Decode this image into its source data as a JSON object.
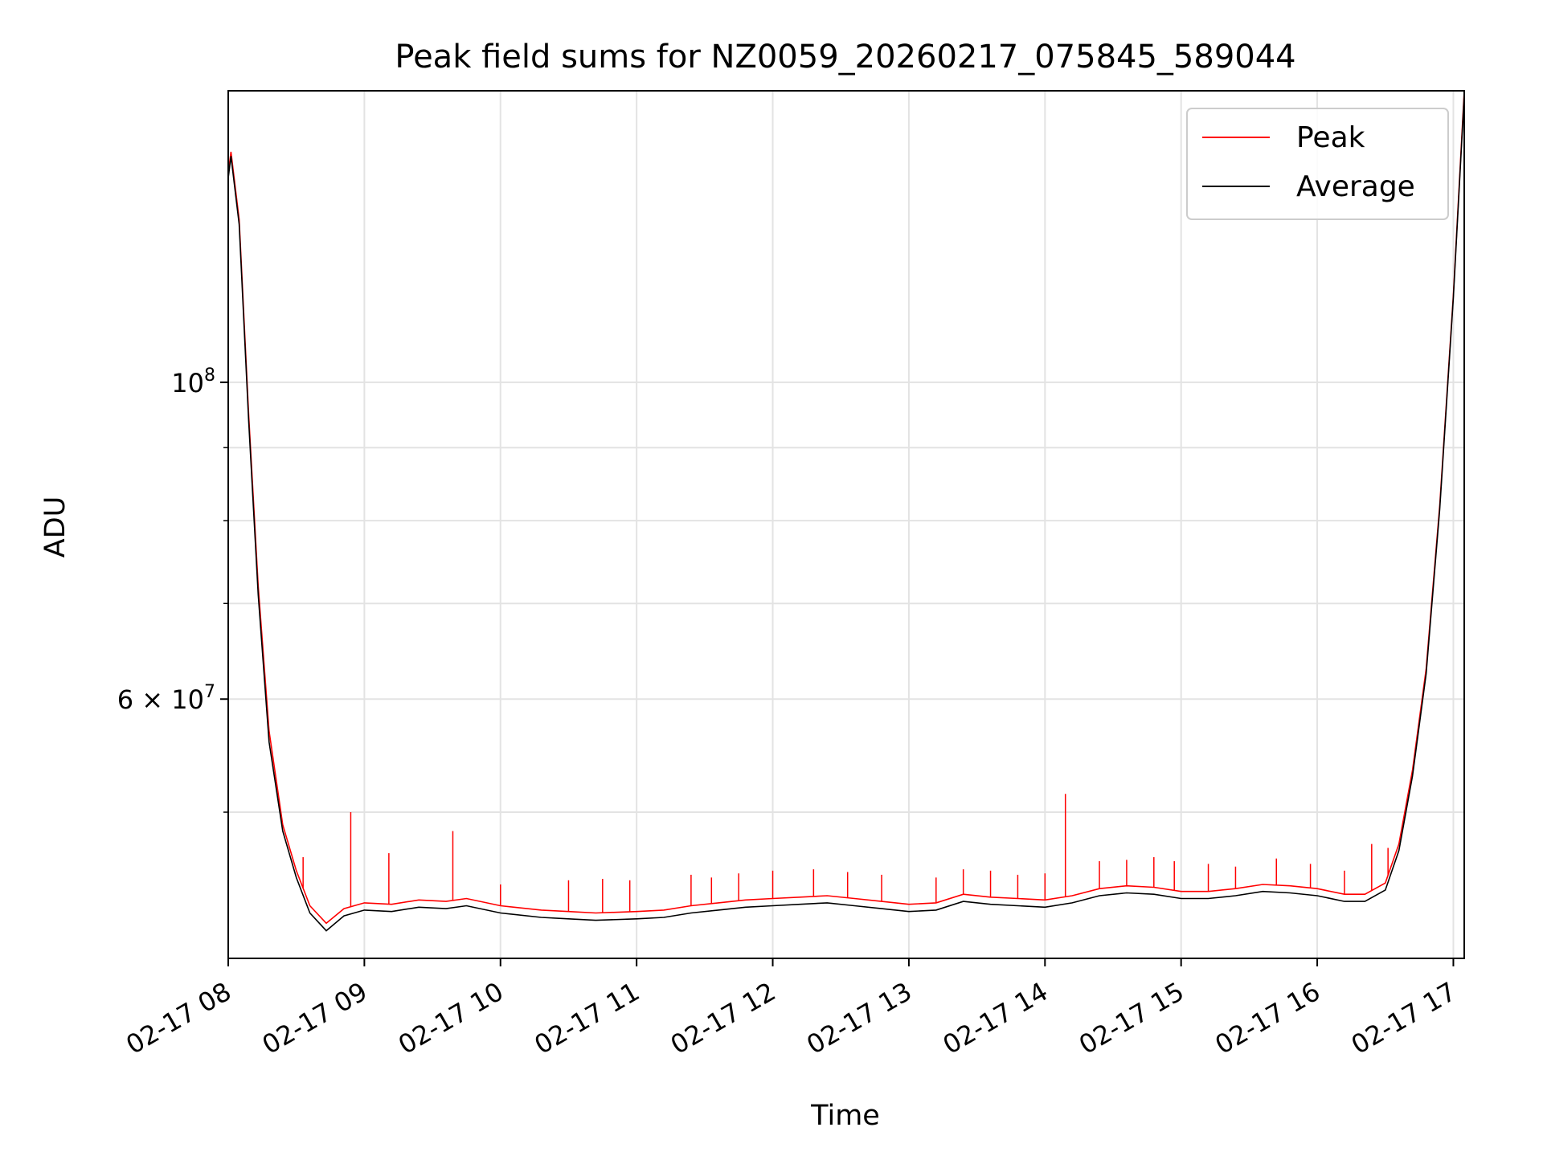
{
  "chart_data": {
    "type": "line",
    "title": "Peak field sums for NZ0059_20260217_075845_589044",
    "xlabel": "Time",
    "ylabel": "ADU",
    "yscale": "log",
    "xlim": [
      0,
      9.08
    ],
    "ylim": [
      39500000,
      160000000
    ],
    "grid": true,
    "legend_position": "upper right",
    "x_ticks": [
      {
        "value": 0,
        "label": "02-17 08"
      },
      {
        "value": 1,
        "label": "02-17 09"
      },
      {
        "value": 2,
        "label": "02-17 10"
      },
      {
        "value": 3,
        "label": "02-17 11"
      },
      {
        "value": 4,
        "label": "02-17 12"
      },
      {
        "value": 5,
        "label": "02-17 13"
      },
      {
        "value": 6,
        "label": "02-17 14"
      },
      {
        "value": 7,
        "label": "02-17 15"
      },
      {
        "value": 8,
        "label": "02-17 16"
      },
      {
        "value": 9,
        "label": "02-17 17"
      }
    ],
    "y_major_ticks": [
      {
        "value": 100000000,
        "label_base": "10",
        "label_exp": "8"
      },
      {
        "value": 60000000,
        "label_base": "6 × 10",
        "label_exp": "7"
      }
    ],
    "y_minor_ticks": [
      50000000,
      70000000,
      80000000,
      90000000
    ],
    "x_unit": "hours since 02-17 08:00",
    "series": [
      {
        "name": "Peak",
        "color": "#ff0000",
        "x": [
          0.0,
          0.02,
          0.08,
          0.15,
          0.22,
          0.3,
          0.4,
          0.5,
          0.6,
          0.72,
          0.85,
          1.0,
          1.2,
          1.4,
          1.6,
          1.75,
          2.0,
          2.3,
          2.5,
          2.7,
          3.0,
          3.2,
          3.4,
          3.6,
          3.8,
          4.0,
          4.2,
          4.4,
          4.6,
          4.8,
          5.0,
          5.2,
          5.4,
          5.6,
          5.8,
          6.0,
          6.2,
          6.4,
          6.6,
          6.8,
          7.0,
          7.2,
          7.4,
          7.6,
          7.8,
          8.0,
          8.2,
          8.35,
          8.5,
          8.6,
          8.7,
          8.8,
          8.9,
          9.0,
          9.08
        ],
        "y": [
          140000000,
          145000000,
          130000000,
          95000000,
          72000000,
          57000000,
          49000000,
          45500000,
          43000000,
          41800000,
          42800000,
          43200000,
          43100000,
          43400000,
          43300000,
          43500000,
          43000000,
          42700000,
          42600000,
          42500000,
          42600000,
          42700000,
          43000000,
          43200000,
          43400000,
          43500000,
          43600000,
          43700000,
          43500000,
          43300000,
          43100000,
          43200000,
          43800000,
          43600000,
          43500000,
          43400000,
          43700000,
          44200000,
          44400000,
          44300000,
          44000000,
          44000000,
          44200000,
          44500000,
          44400000,
          44200000,
          43800000,
          43800000,
          44600000,
          47500000,
          53500000,
          63000000,
          82000000,
          115000000,
          160000000
        ],
        "spikes": [
          {
            "x": 0.55,
            "y": 46500000
          },
          {
            "x": 0.9,
            "y": 50000000
          },
          {
            "x": 1.18,
            "y": 46800000
          },
          {
            "x": 1.65,
            "y": 48500000
          },
          {
            "x": 2.0,
            "y": 44500000
          },
          {
            "x": 2.5,
            "y": 44800000
          },
          {
            "x": 2.75,
            "y": 44900000
          },
          {
            "x": 2.95,
            "y": 44800000
          },
          {
            "x": 3.4,
            "y": 45200000
          },
          {
            "x": 3.55,
            "y": 45000000
          },
          {
            "x": 3.75,
            "y": 45300000
          },
          {
            "x": 4.0,
            "y": 45500000
          },
          {
            "x": 4.3,
            "y": 45600000
          },
          {
            "x": 4.55,
            "y": 45400000
          },
          {
            "x": 4.8,
            "y": 45200000
          },
          {
            "x": 5.2,
            "y": 45000000
          },
          {
            "x": 5.4,
            "y": 45600000
          },
          {
            "x": 5.6,
            "y": 45500000
          },
          {
            "x": 5.8,
            "y": 45200000
          },
          {
            "x": 6.0,
            "y": 45300000
          },
          {
            "x": 6.15,
            "y": 51500000
          },
          {
            "x": 6.4,
            "y": 46200000
          },
          {
            "x": 6.6,
            "y": 46300000
          },
          {
            "x": 6.8,
            "y": 46500000
          },
          {
            "x": 6.95,
            "y": 46200000
          },
          {
            "x": 7.2,
            "y": 46000000
          },
          {
            "x": 7.4,
            "y": 45800000
          },
          {
            "x": 7.7,
            "y": 46400000
          },
          {
            "x": 7.95,
            "y": 46000000
          },
          {
            "x": 8.2,
            "y": 45500000
          },
          {
            "x": 8.4,
            "y": 47500000
          },
          {
            "x": 8.52,
            "y": 47200000
          }
        ]
      },
      {
        "name": "Average",
        "color": "#000000",
        "x": [
          0.0,
          0.02,
          0.08,
          0.15,
          0.22,
          0.3,
          0.4,
          0.5,
          0.6,
          0.72,
          0.85,
          1.0,
          1.2,
          1.4,
          1.6,
          1.75,
          2.0,
          2.3,
          2.5,
          2.7,
          3.0,
          3.2,
          3.4,
          3.6,
          3.8,
          4.0,
          4.2,
          4.4,
          4.6,
          4.8,
          5.0,
          5.2,
          5.4,
          5.6,
          5.8,
          6.0,
          6.2,
          6.4,
          6.6,
          6.8,
          7.0,
          7.2,
          7.4,
          7.6,
          7.8,
          8.0,
          8.2,
          8.35,
          8.5,
          8.6,
          8.7,
          8.8,
          8.9,
          9.0,
          9.08
        ],
        "y": [
          139000000,
          144000000,
          129000000,
          94000000,
          71000000,
          56000000,
          48500000,
          45000000,
          42500000,
          41300000,
          42300000,
          42700000,
          42600000,
          42900000,
          42800000,
          43000000,
          42500000,
          42200000,
          42100000,
          42000000,
          42100000,
          42200000,
          42500000,
          42700000,
          42900000,
          43000000,
          43100000,
          43200000,
          43000000,
          42800000,
          42600000,
          42700000,
          43300000,
          43100000,
          43000000,
          42900000,
          43200000,
          43700000,
          43900000,
          43800000,
          43500000,
          43500000,
          43700000,
          44000000,
          43900000,
          43700000,
          43300000,
          43300000,
          44100000,
          47000000,
          53000000,
          62500000,
          81500000,
          114500000,
          159000000
        ]
      }
    ]
  }
}
